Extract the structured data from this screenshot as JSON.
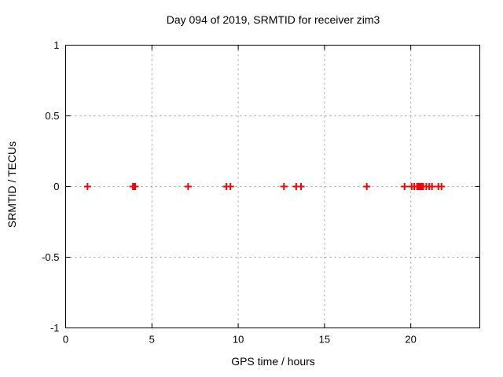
{
  "page": {
    "background": "#ffffff",
    "border_color": "#000000",
    "grid_color": "#9a9a9a",
    "marker_color": "#ff0000"
  },
  "chart_data": {
    "type": "scatter",
    "title": "Day 094 of 2019, SRMTID for receiver zim3",
    "xlabel": "GPS time / hours",
    "ylabel": "SRMTID / TECUs",
    "xlim": [
      0,
      24
    ],
    "ylim": [
      -1,
      1
    ],
    "xticks": [
      0,
      5,
      10,
      15,
      20
    ],
    "xtick_labels": [
      "0",
      "5",
      "10",
      "15",
      "20"
    ],
    "yticks": [
      -1,
      -0.5,
      0,
      0.5,
      1
    ],
    "ytick_labels": [
      "-1",
      "-0.5",
      "0",
      "0.5",
      "1"
    ],
    "grid": true,
    "legend": "none",
    "marker": {
      "shape": "plus",
      "color": "#ff0000",
      "size": 9,
      "stroke_width": 2
    },
    "series": [
      {
        "name": "SRMTID",
        "x": [
          1.27,
          3.9,
          3.97,
          4.03,
          7.1,
          9.32,
          9.55,
          12.65,
          13.36,
          13.64,
          17.45,
          19.64,
          20.05,
          20.2,
          20.36,
          20.42,
          20.48,
          20.54,
          20.6,
          20.66,
          20.72,
          20.9,
          21.07,
          21.23,
          21.6,
          21.78
        ],
        "y": [
          0,
          0,
          0,
          0,
          0,
          0,
          0,
          0,
          0,
          0,
          0,
          0,
          0,
          0,
          0,
          0,
          0,
          0,
          0,
          0,
          0,
          0,
          0,
          0,
          0,
          0
        ]
      }
    ]
  }
}
